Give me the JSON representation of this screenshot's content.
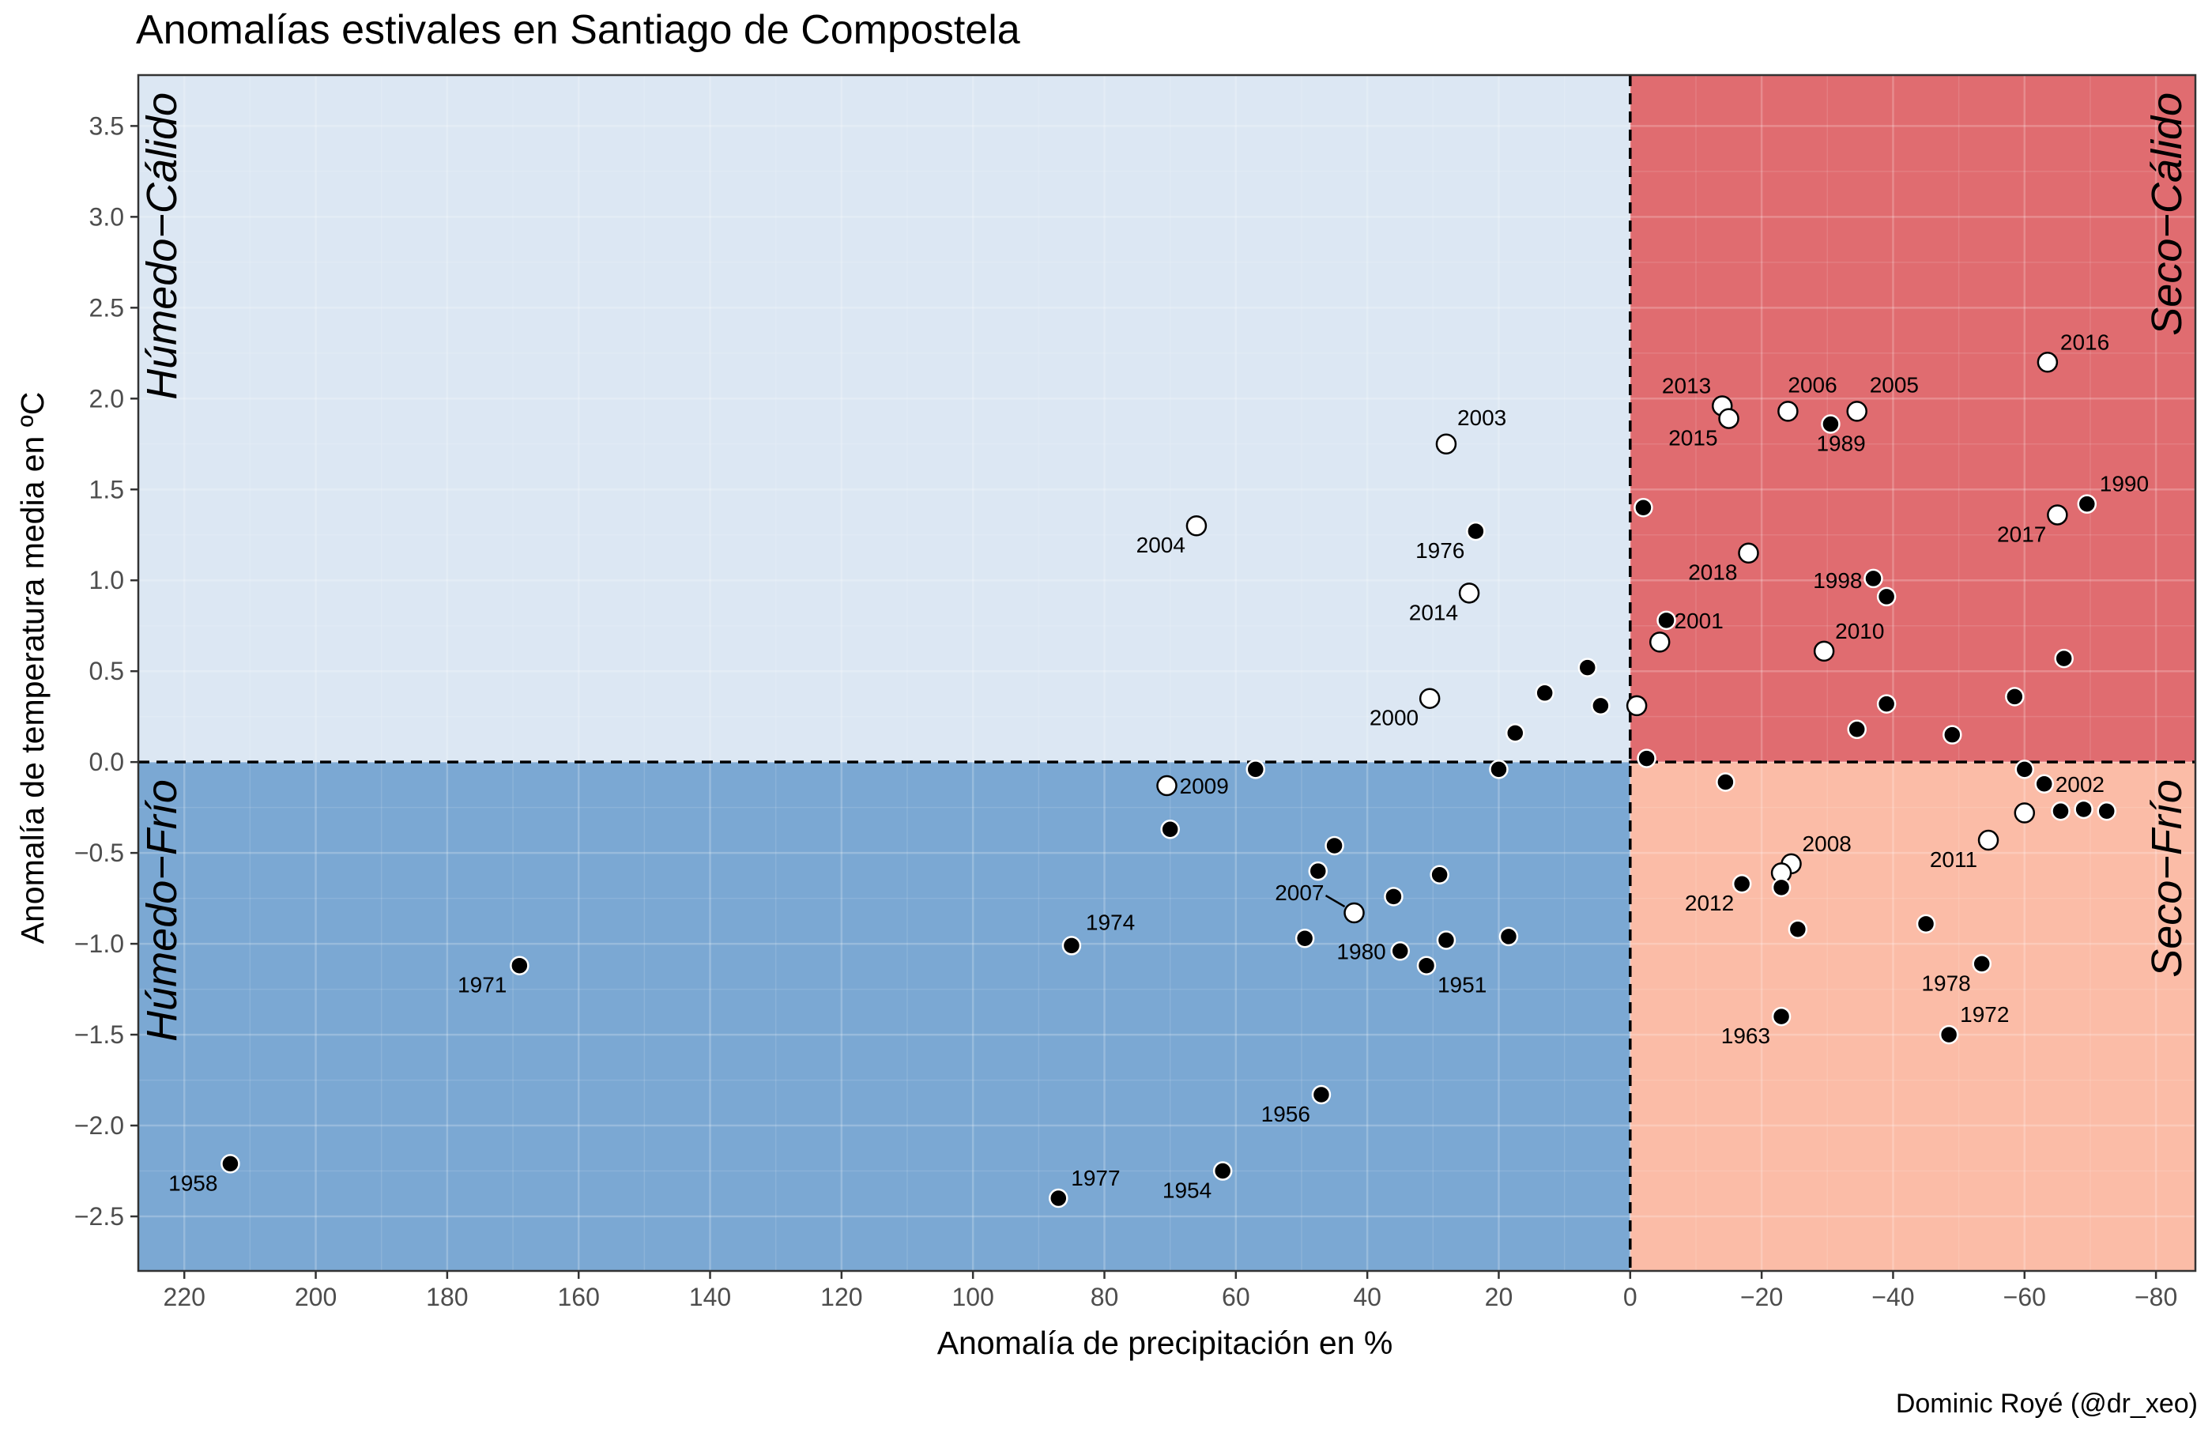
{
  "title": "Anomalías estivales en Santiago de Compostela",
  "caption": "Dominic Royé (@dr_xeo)",
  "colors": {
    "humedo_calido": "#dce7f3",
    "humedo_frio": "#7ba8d3",
    "seco_calido": "#e06c70",
    "seco_frio": "#fbbca7",
    "wet_point": "#000000",
    "el_nino_point": "#ffffff"
  },
  "chart_data": {
    "type": "scatter",
    "title": "Anomalías estivales en Santiago de Compostela",
    "xlabel": "Anomalía de precipitación en %",
    "ylabel": "Anomalía de temperatura media en ºC",
    "x_reversed": true,
    "xlim": [
      227,
      -86
    ],
    "ylim": [
      -2.8,
      3.78
    ],
    "xticks": [
      220,
      200,
      180,
      160,
      140,
      120,
      100,
      80,
      60,
      40,
      20,
      0,
      -20,
      -40,
      -60,
      -80
    ],
    "xtick_labels": [
      "220",
      "200",
      "180",
      "160",
      "140",
      "120",
      "100",
      "80",
      "60",
      "40",
      "20",
      "0",
      "−20",
      "−40",
      "−60",
      "−80"
    ],
    "yticks": [
      -2.5,
      -2.0,
      -1.5,
      -1.0,
      -0.5,
      0.0,
      0.5,
      1.0,
      1.5,
      2.0,
      2.5,
      3.0,
      3.5
    ],
    "ytick_labels": [
      "−2.5",
      "−2.0",
      "−1.5",
      "−1.0",
      "−0.5",
      "0.0",
      "0.5",
      "1.0",
      "1.5",
      "2.0",
      "2.5",
      "3.0",
      "3.5"
    ],
    "grid": true,
    "reference_lines": {
      "x": 0,
      "y": 0,
      "style": "dashed"
    },
    "quadrants": [
      {
        "label": "Húmedo−Cálido",
        "x_side": "positive",
        "y_side": "positive",
        "color": "#dce7f3"
      },
      {
        "label": "Húmedo−Frío",
        "x_side": "positive",
        "y_side": "negative",
        "color": "#7ba8d3"
      },
      {
        "label": "Seco−Cálido",
        "x_side": "negative",
        "y_side": "positive",
        "color": "#e06c70"
      },
      {
        "label": "Seco−Frío",
        "x_side": "negative",
        "y_side": "negative",
        "color": "#fbbca7"
      }
    ],
    "points": [
      {
        "x": 28.0,
        "y": 1.75,
        "fill": "white",
        "label": "2003"
      },
      {
        "x": 66.0,
        "y": 1.3,
        "fill": "white",
        "label": "2004"
      },
      {
        "x": 23.5,
        "y": 1.27,
        "fill": "black",
        "label": "1976"
      },
      {
        "x": 24.5,
        "y": 0.93,
        "fill": "white",
        "label": "2014"
      },
      {
        "x": 30.5,
        "y": 0.35,
        "fill": "white",
        "label": "2000"
      },
      {
        "x": 6.5,
        "y": 0.52,
        "fill": "black"
      },
      {
        "x": 13.0,
        "y": 0.38,
        "fill": "black"
      },
      {
        "x": 4.5,
        "y": 0.31,
        "fill": "black"
      },
      {
        "x": 17.5,
        "y": 0.16,
        "fill": "black"
      },
      {
        "x": 20.0,
        "y": -0.04,
        "fill": "black"
      },
      {
        "x": 57.0,
        "y": -0.04,
        "fill": "black"
      },
      {
        "x": 70.5,
        "y": -0.13,
        "fill": "white",
        "label": "2009"
      },
      {
        "x": 70.0,
        "y": -0.37,
        "fill": "black"
      },
      {
        "x": 45.0,
        "y": -0.46,
        "fill": "black"
      },
      {
        "x": 47.5,
        "y": -0.6,
        "fill": "black"
      },
      {
        "x": 29.0,
        "y": -0.62,
        "fill": "black"
      },
      {
        "x": 36.0,
        "y": -0.74,
        "fill": "black"
      },
      {
        "x": 42.0,
        "y": -0.83,
        "fill": "white",
        "label": "2007"
      },
      {
        "x": 49.5,
        "y": -0.97,
        "fill": "black"
      },
      {
        "x": 35.0,
        "y": -1.04,
        "fill": "black",
        "label": "1980"
      },
      {
        "x": 28.0,
        "y": -0.98,
        "fill": "black"
      },
      {
        "x": 18.5,
        "y": -0.96,
        "fill": "black"
      },
      {
        "x": 31.0,
        "y": -1.12,
        "fill": "black",
        "label": "1951"
      },
      {
        "x": 85.0,
        "y": -1.01,
        "fill": "black",
        "label": "1974"
      },
      {
        "x": 169.0,
        "y": -1.12,
        "fill": "black",
        "label": "1971"
      },
      {
        "x": 47.0,
        "y": -1.83,
        "fill": "black",
        "label": "1956"
      },
      {
        "x": 213.0,
        "y": -2.21,
        "fill": "black",
        "label": "1958"
      },
      {
        "x": 62.0,
        "y": -2.25,
        "fill": "black",
        "label": "1954"
      },
      {
        "x": 87.0,
        "y": -2.4,
        "fill": "black",
        "label": "1977"
      },
      {
        "x": -14.0,
        "y": 1.96,
        "fill": "white",
        "label": "2013"
      },
      {
        "x": -15.0,
        "y": 1.89,
        "fill": "white",
        "label": "2015"
      },
      {
        "x": -24.0,
        "y": 1.93,
        "fill": "white",
        "label": "2006"
      },
      {
        "x": -34.5,
        "y": 1.93,
        "fill": "white",
        "label": "2005"
      },
      {
        "x": -30.5,
        "y": 1.86,
        "fill": "black",
        "label": "1989"
      },
      {
        "x": -63.5,
        "y": 2.2,
        "fill": "white",
        "label": "2016"
      },
      {
        "x": -69.5,
        "y": 1.42,
        "fill": "black",
        "label": "1990"
      },
      {
        "x": -65.0,
        "y": 1.36,
        "fill": "white",
        "label": "2017"
      },
      {
        "x": -2.0,
        "y": 1.4,
        "fill": "black"
      },
      {
        "x": -18.0,
        "y": 1.15,
        "fill": "white",
        "label": "2018"
      },
      {
        "x": -37.0,
        "y": 1.01,
        "fill": "black",
        "label": "1998"
      },
      {
        "x": -39.0,
        "y": 0.91,
        "fill": "black"
      },
      {
        "x": -5.5,
        "y": 0.78,
        "fill": "black",
        "label": "2001"
      },
      {
        "x": -4.5,
        "y": 0.66,
        "fill": "white"
      },
      {
        "x": -29.5,
        "y": 0.61,
        "fill": "white",
        "label": "2010"
      },
      {
        "x": -66.0,
        "y": 0.57,
        "fill": "black"
      },
      {
        "x": -1.0,
        "y": 0.31,
        "fill": "white"
      },
      {
        "x": -39.0,
        "y": 0.32,
        "fill": "black"
      },
      {
        "x": -58.5,
        "y": 0.36,
        "fill": "black"
      },
      {
        "x": -34.5,
        "y": 0.18,
        "fill": "black"
      },
      {
        "x": -49.0,
        "y": 0.15,
        "fill": "black"
      },
      {
        "x": -2.5,
        "y": 0.02,
        "fill": "black"
      },
      {
        "x": -14.5,
        "y": -0.11,
        "fill": "black"
      },
      {
        "x": -60.0,
        "y": -0.04,
        "fill": "black"
      },
      {
        "x": -63.0,
        "y": -0.12,
        "fill": "black",
        "label": "2002"
      },
      {
        "x": -60.0,
        "y": -0.28,
        "fill": "white"
      },
      {
        "x": -65.5,
        "y": -0.27,
        "fill": "black"
      },
      {
        "x": -69.0,
        "y": -0.26,
        "fill": "black"
      },
      {
        "x": -72.5,
        "y": -0.27,
        "fill": "black"
      },
      {
        "x": -54.5,
        "y": -0.43,
        "fill": "white",
        "label": "2011"
      },
      {
        "x": -24.5,
        "y": -0.56,
        "fill": "white",
        "label": "2008"
      },
      {
        "x": -23.0,
        "y": -0.61,
        "fill": "white"
      },
      {
        "x": -17.0,
        "y": -0.67,
        "fill": "black",
        "label": "2012"
      },
      {
        "x": -23.0,
        "y": -0.69,
        "fill": "black"
      },
      {
        "x": -25.5,
        "y": -0.92,
        "fill": "black"
      },
      {
        "x": -45.0,
        "y": -0.89,
        "fill": "black"
      },
      {
        "x": -53.5,
        "y": -1.11,
        "fill": "black",
        "label": "1978"
      },
      {
        "x": -23.0,
        "y": -1.4,
        "fill": "black",
        "label": "1963"
      },
      {
        "x": -48.5,
        "y": -1.5,
        "fill": "black",
        "label": "1972"
      }
    ]
  }
}
